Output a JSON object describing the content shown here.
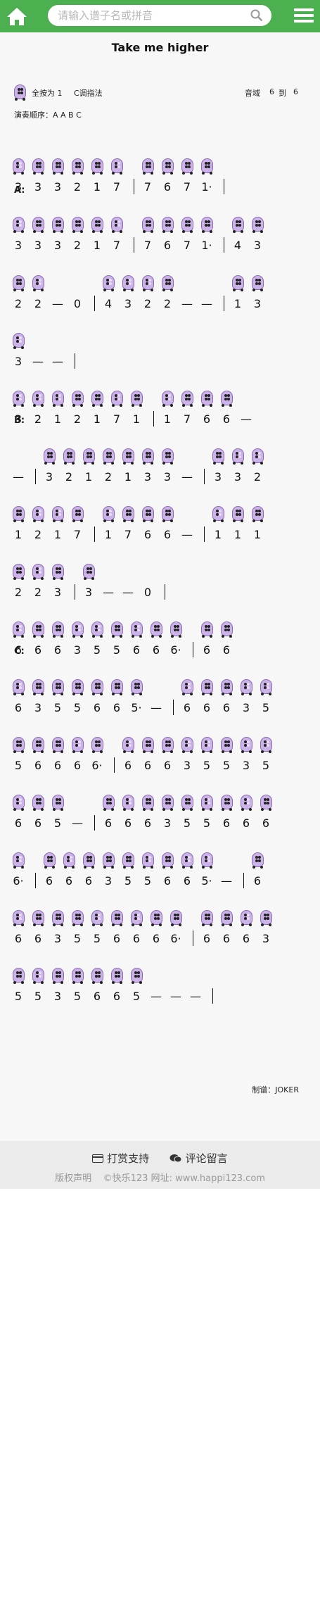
{
  "header": {
    "search_placeholder": "请输入谱子名或拼音",
    "home_icon": "home-icon",
    "menu_icon": "menu-icon",
    "search_icon": "search-icon",
    "bg_color": "#4caf50"
  },
  "song": {
    "title": "Take me higher",
    "key_label": "全按为 1",
    "fingering": "C调指法",
    "range_label": "音域",
    "range_from": "6",
    "range_to": "到",
    "range_end": "6",
    "order": "演奏顺序：A A B C",
    "credit": "制谱：JOKER"
  },
  "sections": {
    "a": "A:",
    "b": "B:",
    "c": "C:"
  },
  "rows": [
    {
      "notes": "3 3 3 2 1 7 | 7 6 7 1· |"
    },
    {
      "notes": "3 3 3 2 1 7 | 7 6 7 1· | 4 3"
    },
    {
      "notes": "2 2 — 0 | 4 3 2 2 — — | 1 3"
    },
    {
      "notes": "3 — — |"
    },
    {
      "notes": "3 2 1 2 1 7 1 | 1 7 6 6 —"
    },
    {
      "notes": "— | 3 2 1 2 1 3 3 — | 3 3 2"
    },
    {
      "notes": "1 2 1 7 | 1 7 6 6 — | 1 1 1"
    },
    {
      "notes": "2 2 3 | 3 — — 0 |"
    },
    {
      "notes": "6 6 6 3 5 5 6 6 6· | 6 6"
    },
    {
      "notes": "6 3 5 5 6 6 5· — | 6 6 6 3 5"
    },
    {
      "notes": "5 6 6 6 6· | 6 6 6 3 5 5 3 5"
    },
    {
      "notes": "6 6 5 — | 6 6 6 3 5 5 6 6 6"
    },
    {
      "notes": "6· | 6 6 6 3 5 5 6 6 5· — | 6"
    },
    {
      "notes": "6 6 3 5 5 6 6 6 6· | 6 6 6 3"
    },
    {
      "notes": "5 5 3 5 6 6 5 — — — |"
    }
  ],
  "footer": {
    "donate_icon": "card-icon",
    "donate": "打赏支持",
    "comment_icon": "chat-icon",
    "comment": "评论留言",
    "copyright": "版权声明",
    "site": "©快乐123 网址: www.happi123.com"
  }
}
